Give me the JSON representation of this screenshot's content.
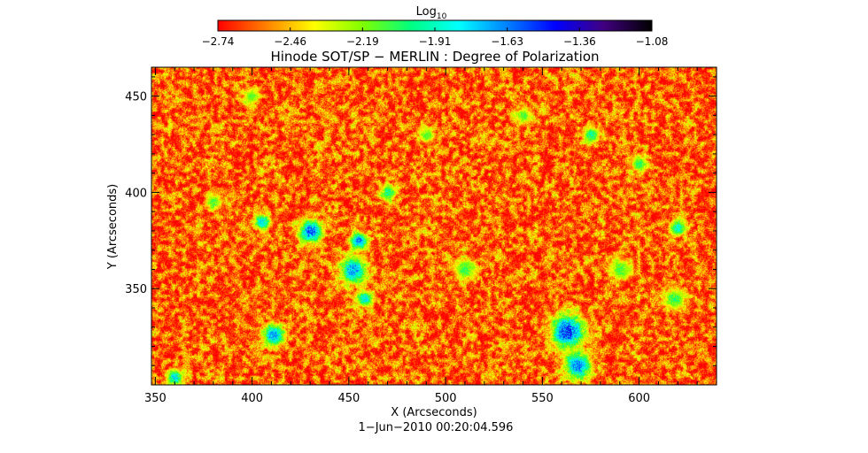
{
  "chart_data": {
    "type": "heatmap",
    "title": "Hinode SOT/SP − MERLIN : Degree of Polarization",
    "xlabel": "X (Arcseconds)",
    "ylabel": "Y (Arcseconds)",
    "xlim": [
      348,
      640
    ],
    "ylim": [
      300,
      465
    ],
    "x_ticks": [
      350,
      400,
      450,
      500,
      550,
      600
    ],
    "x_tick_labels": [
      "350",
      "400",
      "450",
      "500",
      "550",
      "600"
    ],
    "y_ticks": [
      350,
      400,
      450
    ],
    "y_tick_labels": [
      "350",
      "400",
      "450"
    ],
    "timestamp": "1−Jun−2010 00:20:04.596",
    "colorbar": {
      "title_base": "Log",
      "title_sub": "10",
      "range": [
        -2.74,
        -1.08
      ],
      "scale": "log10",
      "tick_labels": [
        "−2.74",
        "−2.46",
        "−2.19",
        "−1.91",
        "−1.63",
        "−1.36",
        "−1.08"
      ],
      "colormap": [
        "#ff0000",
        "#ff8000",
        "#ffff00",
        "#80ff00",
        "#00ff80",
        "#00ffff",
        "#0080ff",
        "#0000ff",
        "#400080",
        "#000000"
      ]
    },
    "background_level": -2.6,
    "strong_patches": [
      {
        "x": 430,
        "y": 380,
        "radius": 4,
        "level": -1.45
      },
      {
        "x": 452,
        "y": 360,
        "radius": 5,
        "level": -1.6
      },
      {
        "x": 455,
        "y": 375,
        "radius": 3,
        "level": -1.55
      },
      {
        "x": 411,
        "y": 326,
        "radius": 4,
        "level": -1.6
      },
      {
        "x": 563,
        "y": 328,
        "radius": 6,
        "level": -1.4
      },
      {
        "x": 568,
        "y": 310,
        "radius": 5,
        "level": -1.55
      },
      {
        "x": 405,
        "y": 385,
        "radius": 3,
        "level": -1.7
      },
      {
        "x": 458,
        "y": 345,
        "radius": 3,
        "level": -1.75
      },
      {
        "x": 360,
        "y": 304,
        "radius": 3,
        "level": -1.7
      },
      {
        "x": 620,
        "y": 382,
        "radius": 3,
        "level": -1.8
      },
      {
        "x": 575,
        "y": 430,
        "radius": 3,
        "level": -1.9
      },
      {
        "x": 470,
        "y": 400,
        "radius": 3,
        "level": -1.9
      },
      {
        "x": 510,
        "y": 360,
        "radius": 4,
        "level": -2.0
      },
      {
        "x": 590,
        "y": 360,
        "radius": 4,
        "level": -2.05
      },
      {
        "x": 618,
        "y": 345,
        "radius": 4,
        "level": -2.0
      },
      {
        "x": 380,
        "y": 395,
        "radius": 3,
        "level": -2.05
      },
      {
        "x": 540,
        "y": 440,
        "radius": 3,
        "level": -2.05
      },
      {
        "x": 490,
        "y": 430,
        "radius": 3,
        "level": -2.1
      },
      {
        "x": 400,
        "y": 450,
        "radius": 3,
        "level": -2.1
      },
      {
        "x": 600,
        "y": 415,
        "radius": 3,
        "level": -2.0
      }
    ]
  }
}
